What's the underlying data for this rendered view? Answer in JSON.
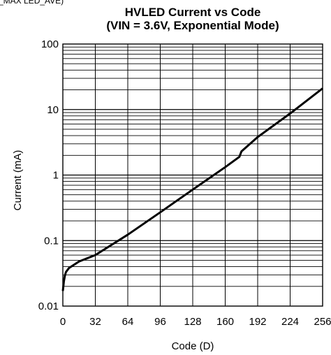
{
  "header_fragment": "_MAX  LED_AVE)",
  "chart_data": {
    "type": "line",
    "title_line1": "HVLED Current vs Code",
    "title_line2": "(VIN = 3.6V, Exponential Mode)",
    "xlabel": "Code (D)",
    "ylabel": "Current (mA)",
    "xlim": [
      0,
      256
    ],
    "ylim": [
      0.01,
      100
    ],
    "yscale": "log",
    "grid": true,
    "x_ticks": [
      0,
      32,
      64,
      96,
      128,
      160,
      192,
      224,
      256
    ],
    "y_ticks": [
      0.01,
      0.1,
      1,
      10,
      100
    ],
    "y_tick_labels": [
      "0.01",
      "0.1",
      "1",
      "10",
      "100"
    ],
    "series": [
      {
        "x": [
          0,
          1,
          2,
          3,
          6,
          16,
          32,
          64,
          96,
          128,
          160,
          174,
          176,
          192,
          224,
          256
        ],
        "y": [
          0.017,
          0.024,
          0.029,
          0.033,
          0.038,
          0.048,
          0.06,
          0.123,
          0.27,
          0.6,
          1.32,
          1.9,
          2.3,
          3.8,
          8.7,
          21
        ]
      }
    ]
  }
}
